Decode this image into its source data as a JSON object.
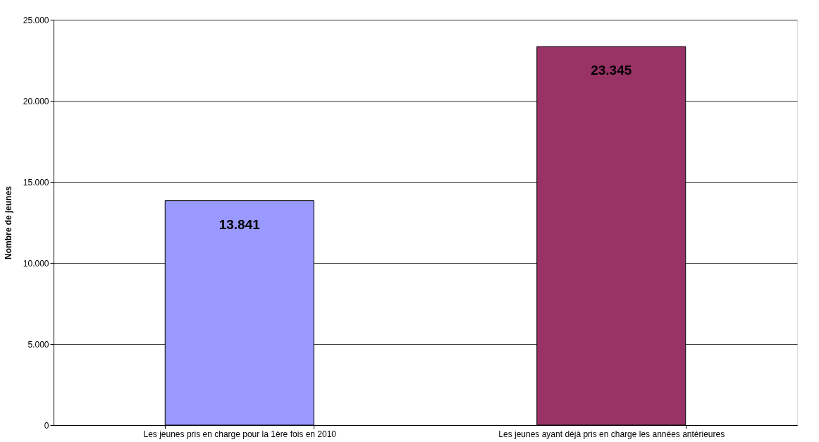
{
  "chart_data": {
    "type": "bar",
    "ylabel": "Nombre de jeunes",
    "categories": [
      "Les jeunes pris en charge pour la 1ère fois en 2010",
      "Les jeunes ayant déjà pris en charge les années antérieures"
    ],
    "values": [
      13841,
      23345
    ],
    "colors": [
      "#9999ff",
      "#993366"
    ],
    "value_labels": [
      "13.841",
      "23.345"
    ],
    "ylim": [
      0,
      25000
    ],
    "yticks": [
      {
        "value": 0,
        "label": "0"
      },
      {
        "value": 5000,
        "label": "5.000"
      },
      {
        "value": 10000,
        "label": "10.000"
      },
      {
        "value": 15000,
        "label": "15.000"
      },
      {
        "value": 20000,
        "label": "20.000"
      },
      {
        "value": 25000,
        "label": "25.000"
      }
    ],
    "grid": "y",
    "legend": false
  }
}
